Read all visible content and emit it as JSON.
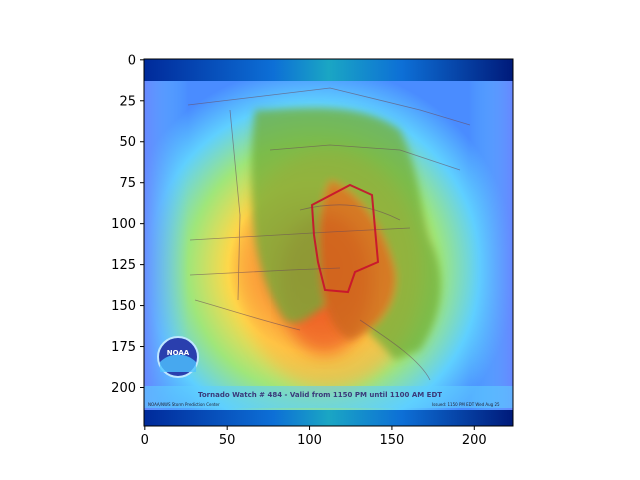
{
  "image": {
    "description_free": true,
    "axes": {
      "x_ticks": [
        "0",
        "50",
        "100",
        "150",
        "200"
      ],
      "y_ticks": [
        "0",
        "25",
        "50",
        "75",
        "100",
        "125",
        "150",
        "175",
        "200"
      ]
    },
    "map": {
      "caption": "Tornado Watch # 484  -  Valid from 1150 PM until 1100 AM EDT",
      "footer_left": "NOAA/NWS Storm Prediction Center",
      "footer_right": "Issued: 1150 PM EDT Wed Aug 25",
      "logo_text": "NOAA"
    },
    "colors": {
      "heatmap_edge": "#001a7a",
      "heatmap_mid": "#5fd0ff",
      "heatmap_warm": "#ffd84a",
      "heatmap_hot": "#e8301a",
      "watch_outline": "#c8102e"
    }
  }
}
